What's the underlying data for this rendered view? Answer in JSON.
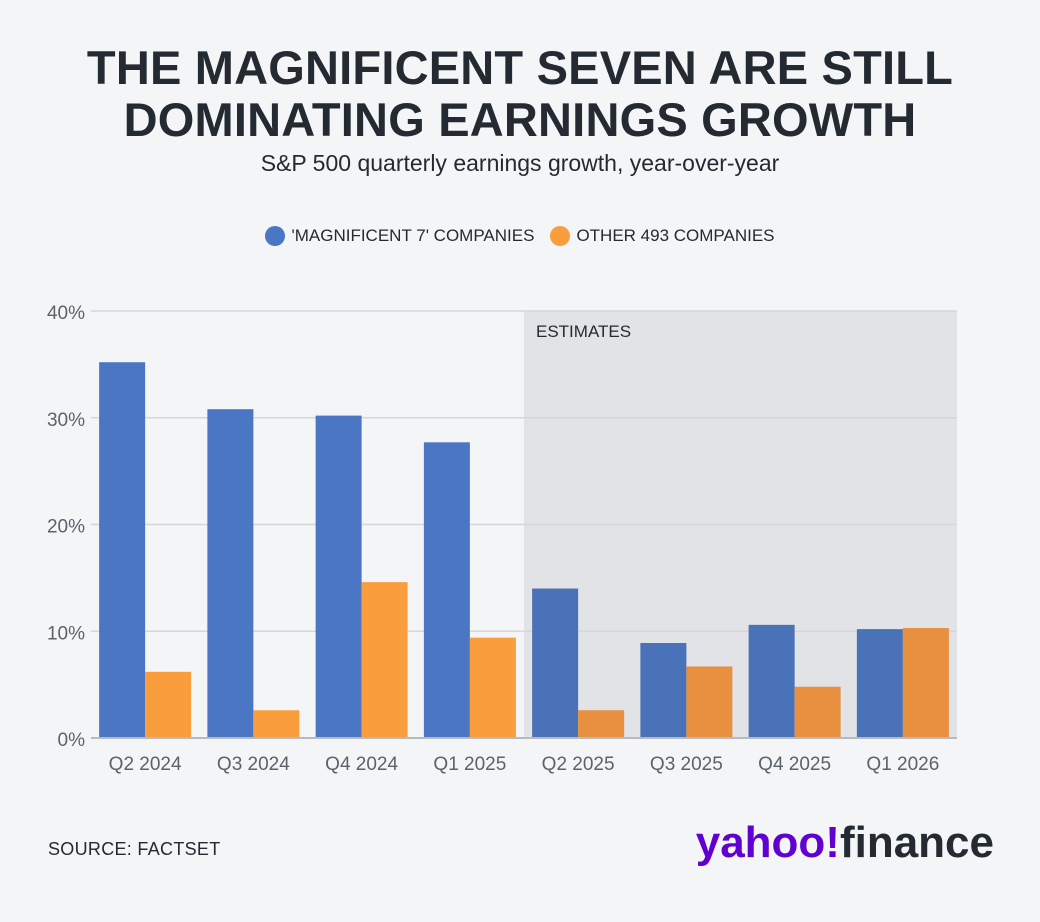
{
  "title_line1": "THE MAGNIFICENT SEVEN ARE STILL",
  "title_line2": "DOMINATING EARNINGS GROWTH",
  "subtitle": "S&P 500 quarterly earnings growth, year-over-year",
  "legend": [
    {
      "label": "'MAGNIFICENT 7' COMPANIES",
      "color": "#4a76c4"
    },
    {
      "label": "OTHER 493 COMPANIES",
      "color": "#f99d3d"
    }
  ],
  "estimates_label": "ESTIMATES",
  "source": "SOURCE: FACTSET",
  "brand": {
    "yahoo": "yahoo",
    "bang": "!",
    "finance": "finance"
  },
  "colors": {
    "mag7": "#4a76c4",
    "mag7_estimate": "#4a72b9",
    "other": "#f99d3d",
    "other_estimate": "#e88f40",
    "estimate_shade": "#e2e3e6",
    "grid": "#d4d6da",
    "axis": "#b7babf"
  },
  "chart_data": {
    "type": "bar",
    "categories": [
      "Q2 2024",
      "Q3 2024",
      "Q4 2024",
      "Q1 2025",
      "Q2 2025",
      "Q3 2025",
      "Q4 2025",
      "Q1 2026"
    ],
    "series": [
      {
        "name": "'MAGNIFICENT 7' COMPANIES",
        "values": [
          35.2,
          30.8,
          30.2,
          27.7,
          14.0,
          8.9,
          10.6,
          10.2
        ]
      },
      {
        "name": "OTHER 493 COMPANIES",
        "values": [
          6.2,
          2.6,
          14.6,
          9.4,
          2.6,
          6.7,
          4.8,
          10.3
        ]
      }
    ],
    "estimate_categories": [
      "Q2 2025",
      "Q3 2025",
      "Q4 2025",
      "Q1 2026"
    ],
    "y_ticks": [
      "0%",
      "10%",
      "20%",
      "30%",
      "40%"
    ],
    "ylim": [
      0,
      40
    ],
    "grid": true,
    "legend_position": "top-center"
  }
}
